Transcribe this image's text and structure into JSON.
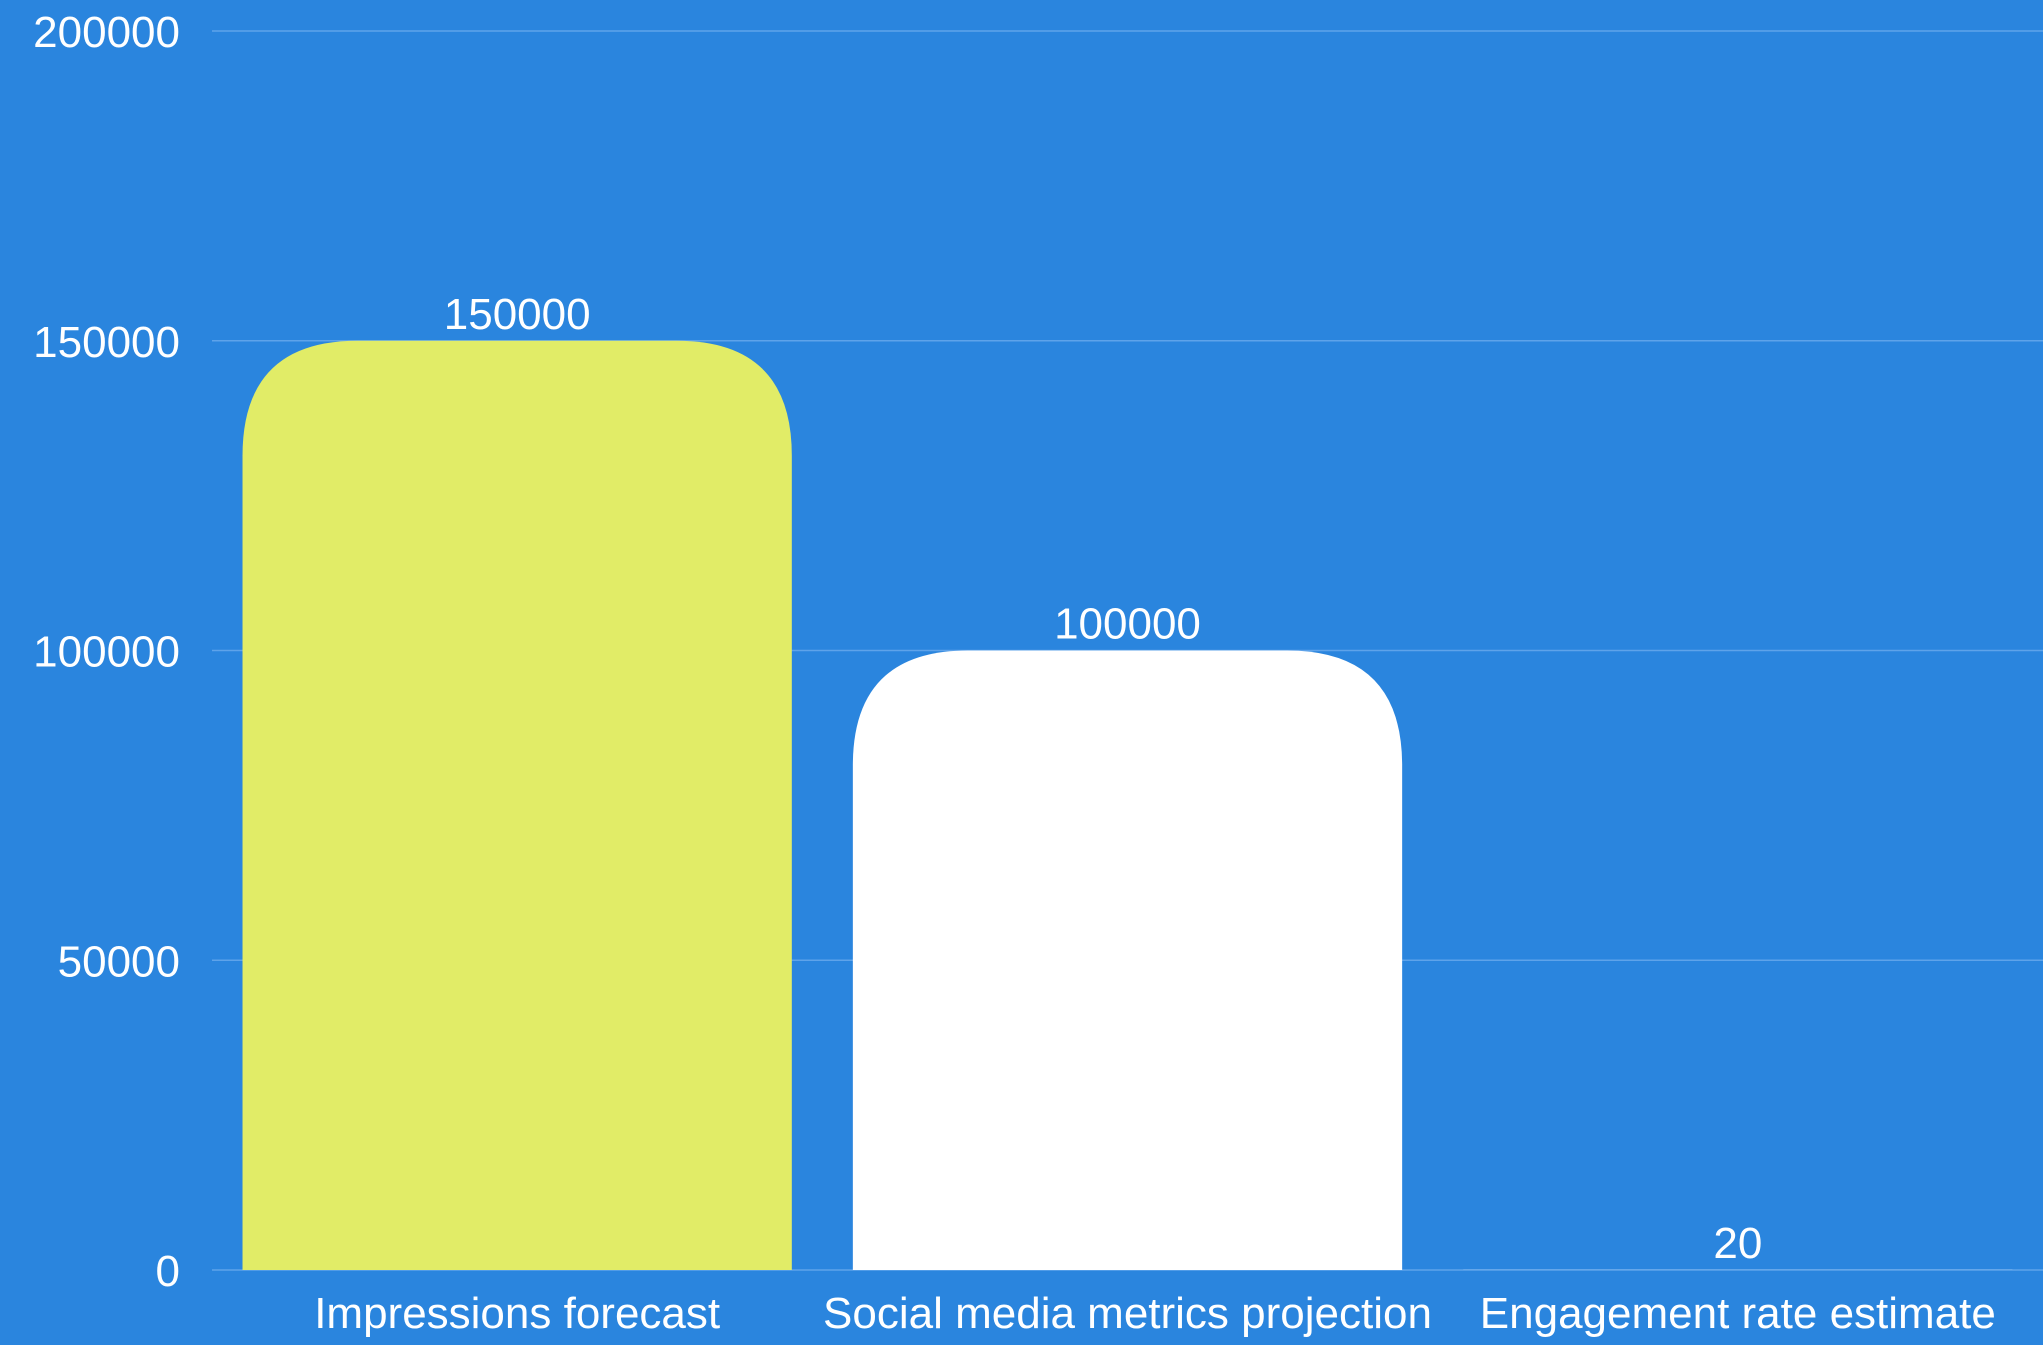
{
  "chart_data": {
    "type": "bar",
    "categories": [
      "Impressions forecast",
      "Social media metrics projection",
      "Engagement rate estimate"
    ],
    "values": [
      150000,
      100000,
      20
    ],
    "data_labels": [
      "150000",
      "100000",
      "20"
    ],
    "title": "",
    "xlabel": "",
    "ylabel": "",
    "ylim": [
      0,
      200000
    ],
    "yticks": [
      "0",
      "50000",
      "100000",
      "150000",
      "200000"
    ],
    "grid": true,
    "legend": "none",
    "colors": {
      "background": "#2a85de",
      "gridline": "#5ea3ea",
      "text": "#ffffff",
      "bars": [
        "#e1ec67",
        "#ffffff",
        "#ffffff"
      ]
    }
  }
}
